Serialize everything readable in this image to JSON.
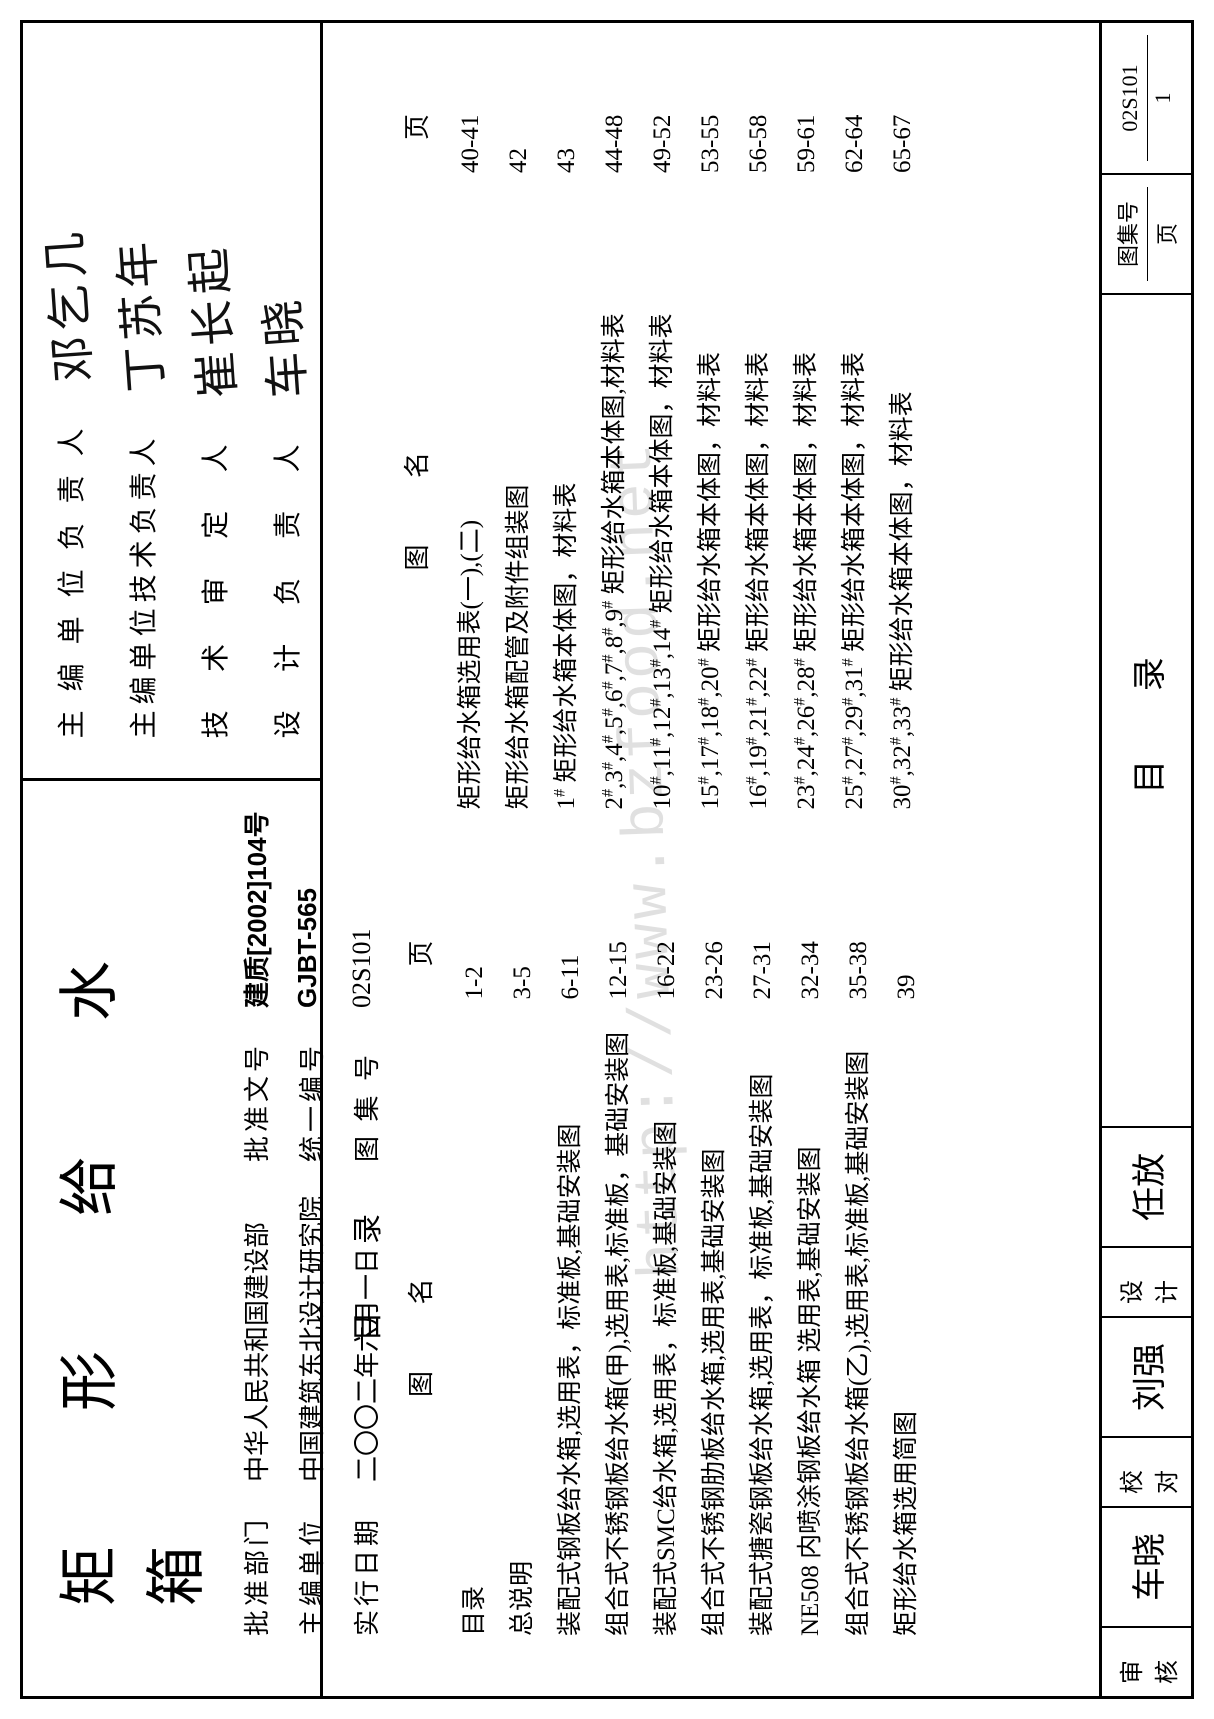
{
  "title": "矩 形 给 水 箱",
  "header": {
    "approve_dept_label": "批准部门",
    "approve_dept": "中华人民共和国建设部",
    "doc_no_label": "批准文号",
    "doc_no": "建质[2002]104号",
    "main_org_label": "主编单位",
    "main_org": "中国建筑东北设计研究院",
    "unif_no_label": "统一编号",
    "unif_no": "GJBT-565",
    "date_label": "实行日期",
    "date": "二〇〇二年六月一日",
    "atlas_no_label": "图 集 号",
    "atlas_no": "02S101"
  },
  "roles": {
    "r1_label": "主 编 单 位 负 责 人",
    "r2_label": "主编单位技术负责人",
    "r3_label": "技 术 审 定 人",
    "r4_label": "设 计 负 责 人",
    "sig1": "邓乞几",
    "sig2": "丁苏年",
    "sig3": "崔长起",
    "sig4": "车晓"
  },
  "toc_heading": "目   录",
  "col_name_hdr": "图   名",
  "col_page_hdr": "页",
  "left_toc": [
    {
      "name": "目录",
      "page": "1-2"
    },
    {
      "name": "总说明",
      "page": "3-5"
    },
    {
      "name": "装配式钢板给水箱,选用表，标准板,基础安装图",
      "page": "6-11"
    },
    {
      "name": "组合式不锈钢板给水箱(甲),选用表,标准板，基础安装图",
      "page": "12-15"
    },
    {
      "name": "装配式SMC给水箱,选用表，标准板,基础安装图",
      "page": "16-22"
    },
    {
      "name": "组合式不锈钢肋板给水箱,选用表,基础安装图",
      "page": "23-26"
    },
    {
      "name": "装配式搪瓷钢板给水箱,选用表，标准板,基础安装图",
      "page": "27-31"
    },
    {
      "name": "NE508 内喷涂钢板给水箱 选用表,基础安装图",
      "page": "32-34"
    },
    {
      "name": "组合式不锈钢板给水箱(乙),选用表,标准板,基础安装图",
      "page": "35-38"
    },
    {
      "name": "矩形给水箱选用简图",
      "page": "39"
    }
  ],
  "right_toc": [
    {
      "name": "矩形给水箱选用表(一),(二)",
      "page": "40-41"
    },
    {
      "name": "矩形给水箱配管及附件组装图",
      "page": "42"
    },
    {
      "name": "1# 矩形给水箱本体图，材料表",
      "page": "43"
    },
    {
      "name": "2#,3#,4#,5#,6#,7#,8#,9# 矩形给水箱本体图,材料表",
      "page": "44-48"
    },
    {
      "name": "10#,11#,12#,13#,14# 矩形给水箱本体图，材料表",
      "page": "49-52"
    },
    {
      "name": "15#,17#,18#,20#      矩形给水箱本体图，材料表",
      "page": "53-55"
    },
    {
      "name": "16#,19#,21#,22#      矩形给水箱本体图，材料表",
      "page": "56-58"
    },
    {
      "name": "23#,24#,26#,28#      矩形给水箱本体图，材料表",
      "page": "59-61"
    },
    {
      "name": "25#,27#,29#,31#      矩形给水箱本体图，材料表",
      "page": "62-64"
    },
    {
      "name": "30#,32#,33#          矩形给水箱本体图，材料表",
      "page": "65-67"
    }
  ],
  "footer": {
    "chk_label": "审核",
    "chk_sig": "车晓",
    "proof_label": "校对",
    "proof_sig": "刘强",
    "design_label": "设计",
    "design_sig": "任放",
    "title": "目   录",
    "atlas_label": "图集号",
    "atlas_val": "02S101",
    "page_label": "页",
    "page_val": "1"
  },
  "watermark": "http://www.bzfood.net"
}
